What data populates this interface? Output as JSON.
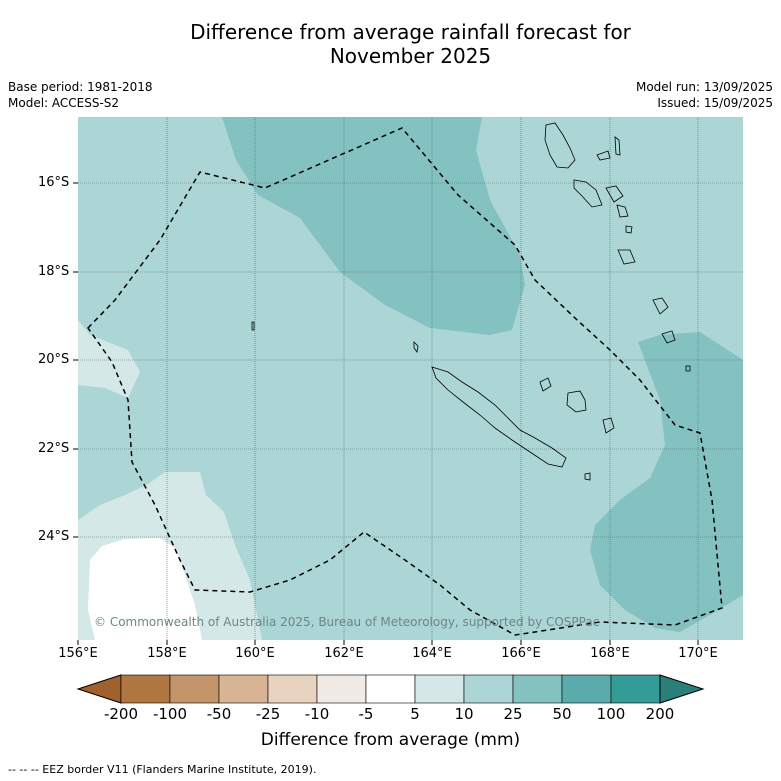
{
  "title": "Difference from average rainfall forecast for\nNovember 2025",
  "title_line1": "Difference from average rainfall forecast for",
  "title_line2": "November 2025",
  "base_period": "Base period: 1981-2018",
  "model": "Model: ACCESS-S2",
  "model_run": "Model run: 13/09/2025",
  "issued": "Issued: 15/09/2025",
  "copyright": "© Commonwealth of Australia 2025, Bureau of Meteorology, supported by COSPPac",
  "lat_labels": [
    "16°S",
    "18°S",
    "20°S",
    "22°S",
    "24°S"
  ],
  "lon_labels": [
    "156°E",
    "158°E",
    "160°E",
    "162°E",
    "164°E",
    "166°E",
    "168°E",
    "170°E"
  ],
  "colorbar": {
    "labels": [
      "-200",
      "-100",
      "-50",
      "-25",
      "-10",
      "-5",
      "5",
      "10",
      "25",
      "50",
      "100",
      "200"
    ],
    "colors": [
      "#a0622d",
      "#b07840",
      "#c4946a",
      "#d8b394",
      "#e8d2c0",
      "#f0ebe7",
      "#ffffff",
      "#d5e8e8",
      "#acd5d5",
      "#84c1c1",
      "#5aacac",
      "#339c98",
      "#2a7f7b"
    ],
    "title": "Difference from average (mm)"
  },
  "footnote": "--  --  -- EEZ border V11 (Flanders Marine Institute, 2019)."
}
